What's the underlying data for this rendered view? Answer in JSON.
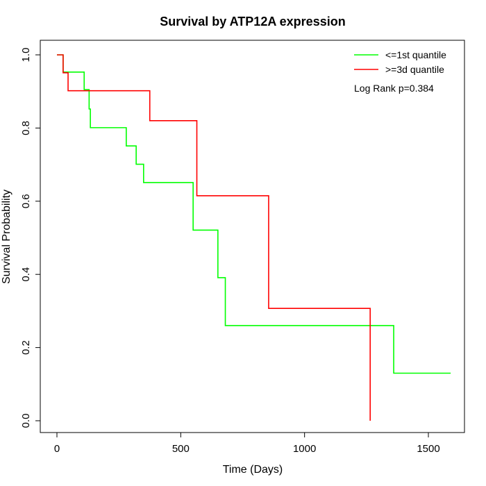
{
  "chart_data": {
    "type": "line",
    "title": "Survival by ATP12A expression",
    "xlabel": "Time (Days)",
    "ylabel": "Survival Probability",
    "xlim": [
      0,
      1650
    ],
    "ylim": [
      0,
      1.0
    ],
    "x_ticks": [
      0,
      500,
      1000,
      1500
    ],
    "x_tick_labels": [
      "0",
      "500",
      "1000",
      "1500"
    ],
    "y_ticks": [
      0,
      0.2,
      0.4,
      0.6,
      0.8,
      1.0
    ],
    "y_tick_labels": [
      "0.0",
      "0.2",
      "0.4",
      "0.6",
      "0.8",
      "1.0"
    ],
    "grid": false,
    "legend_position": "top-right",
    "annotation": "Log Rank p=0.384",
    "series": [
      {
        "name": "<=1st quantile",
        "color": "#00ff00",
        "step": true,
        "x": [
          0,
          25,
          110,
          130,
          135,
          280,
          320,
          350,
          550,
          650,
          680,
          1360,
          1590
        ],
        "y": [
          1.0,
          0.953,
          0.905,
          0.852,
          0.801,
          0.751,
          0.701,
          0.651,
          0.521,
          0.391,
          0.26,
          0.13,
          0.13
        ]
      },
      {
        "name": ">=3d quantile",
        "color": "#ff0000",
        "step": true,
        "x": [
          0,
          25,
          45,
          375,
          565,
          855,
          1265,
          1265
        ],
        "y": [
          1.0,
          0.951,
          0.902,
          0.82,
          0.615,
          0.307,
          0.307,
          0.0
        ]
      }
    ]
  }
}
